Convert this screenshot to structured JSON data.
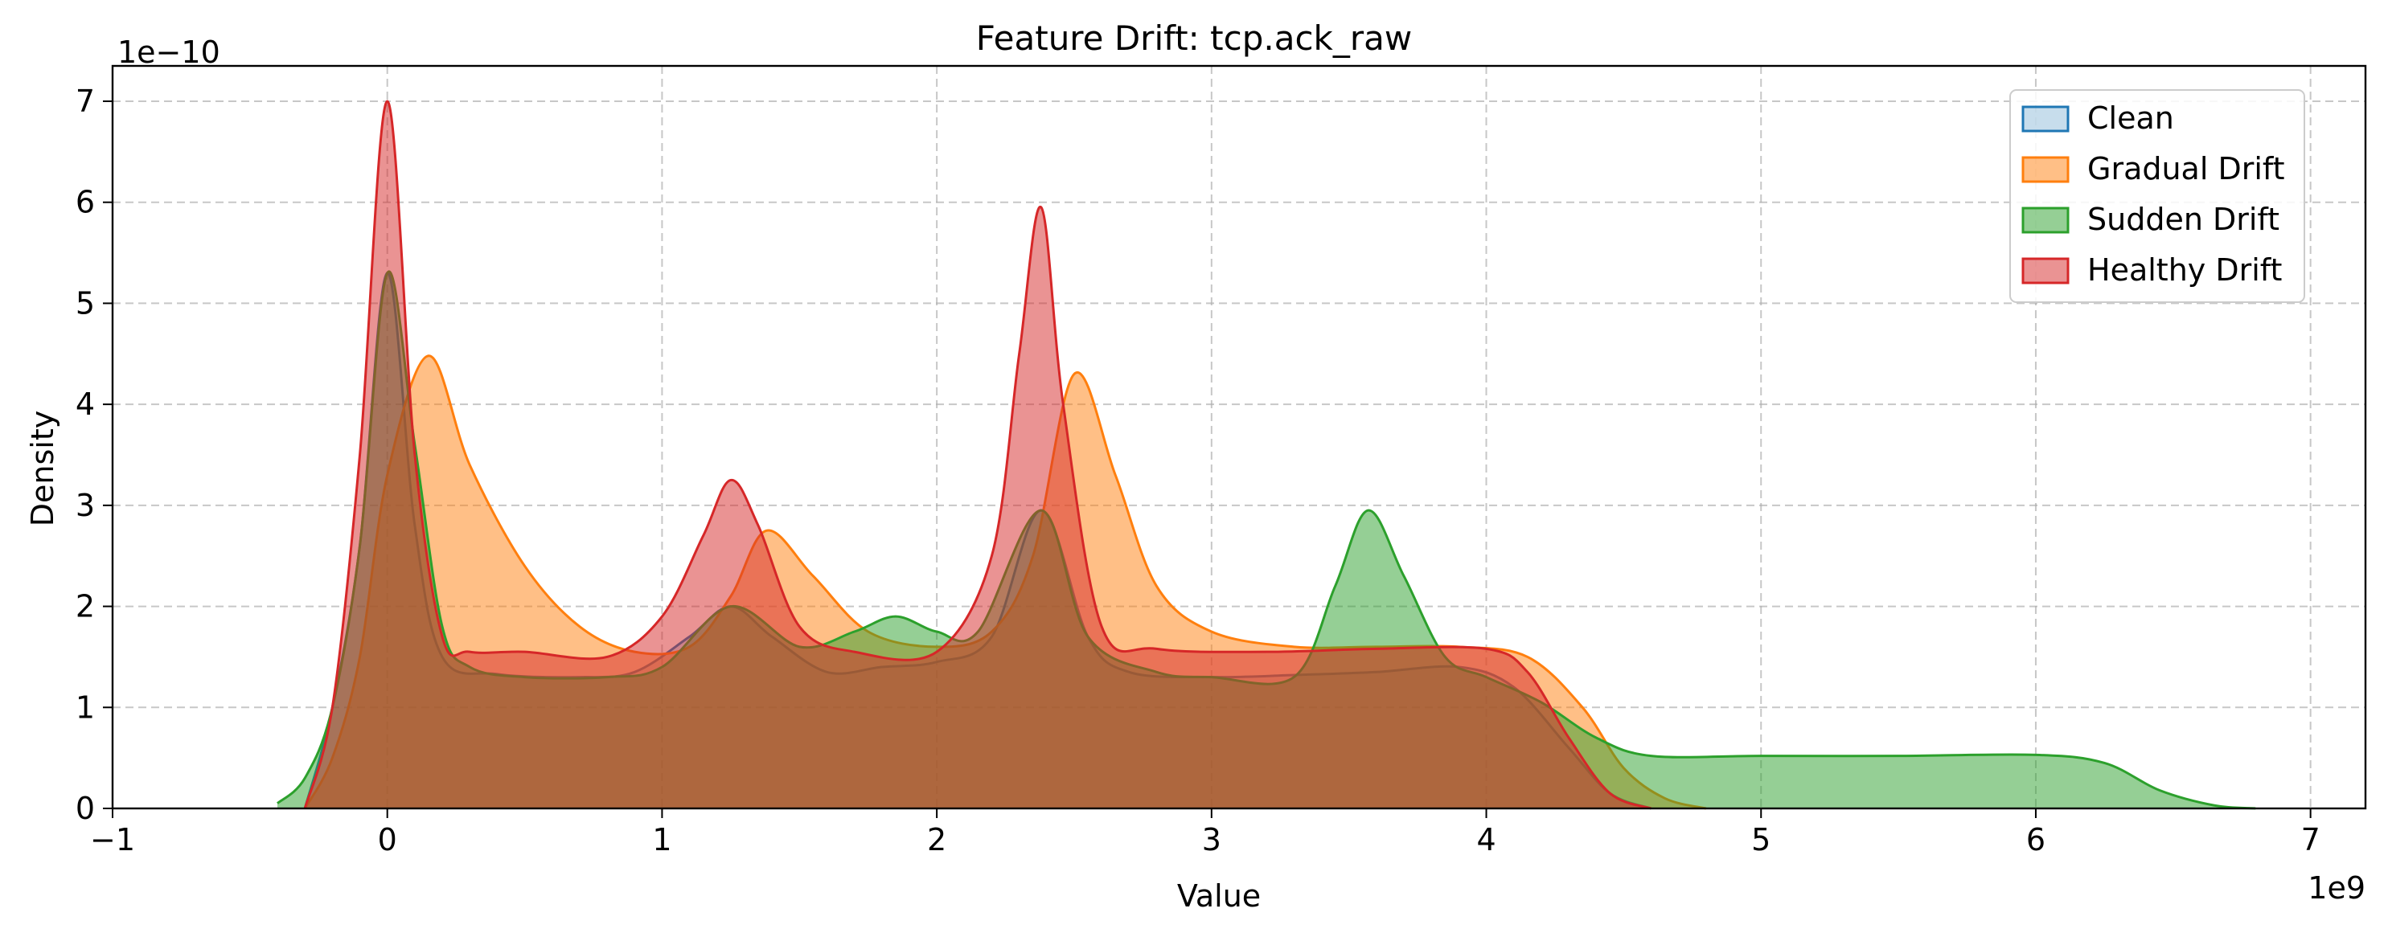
{
  "chart_data": {
    "type": "area",
    "title": "Feature Drift: tcp.ack_raw",
    "xlabel": "Value",
    "ylabel": "Density",
    "x_offset_label": "1e9",
    "y_offset_label": "1e−10",
    "xlim": [
      -1.0,
      7.2
    ],
    "ylim": [
      0,
      7.35
    ],
    "x_ticks": [
      -1,
      0,
      1,
      2,
      3,
      4,
      5,
      6,
      7
    ],
    "x_tick_labels": [
      "−1",
      "0",
      "1",
      "2",
      "3",
      "4",
      "5",
      "6",
      "7"
    ],
    "y_ticks": [
      0,
      1,
      2,
      3,
      4,
      5,
      6,
      7
    ],
    "y_tick_labels": [
      "0",
      "1",
      "2",
      "3",
      "4",
      "5",
      "6",
      "7"
    ],
    "grid": true,
    "legend_position": "top-right",
    "series": [
      {
        "name": "Clean",
        "color": "#1f77b4",
        "x": [
          -0.3,
          -0.2,
          -0.1,
          0.0,
          0.1,
          0.2,
          0.4,
          0.7,
          0.9,
          1.1,
          1.25,
          1.4,
          1.6,
          1.8,
          2.0,
          2.2,
          2.38,
          2.55,
          2.7,
          3.0,
          3.3,
          3.6,
          3.9,
          4.1,
          4.3,
          4.45,
          4.6
        ],
        "y": [
          0.0,
          1.0,
          2.6,
          5.3,
          2.8,
          1.5,
          1.33,
          1.3,
          1.35,
          1.7,
          2.0,
          1.7,
          1.35,
          1.4,
          1.45,
          1.7,
          2.95,
          1.7,
          1.35,
          1.3,
          1.32,
          1.35,
          1.4,
          1.2,
          0.6,
          0.15,
          0.0
        ]
      },
      {
        "name": "Gradual Drift",
        "color": "#ff7f0e",
        "x": [
          -0.3,
          -0.2,
          -0.1,
          0.0,
          0.15,
          0.3,
          0.5,
          0.7,
          0.9,
          1.1,
          1.25,
          1.38,
          1.55,
          1.75,
          2.0,
          2.2,
          2.35,
          2.5,
          2.65,
          2.8,
          3.0,
          3.3,
          3.6,
          3.9,
          4.15,
          4.35,
          4.5,
          4.65,
          4.8
        ],
        "y": [
          0.0,
          0.5,
          1.5,
          3.3,
          4.48,
          3.4,
          2.4,
          1.8,
          1.55,
          1.6,
          2.1,
          2.75,
          2.3,
          1.75,
          1.6,
          1.75,
          2.5,
          4.3,
          3.3,
          2.2,
          1.75,
          1.6,
          1.6,
          1.6,
          1.5,
          1.0,
          0.4,
          0.1,
          0.0
        ]
      },
      {
        "name": "Sudden Drift",
        "color": "#2ca02c",
        "x": [
          -0.4,
          -0.3,
          -0.2,
          -0.1,
          0.0,
          0.1,
          0.2,
          0.3,
          0.5,
          0.8,
          1.0,
          1.25,
          1.5,
          1.7,
          1.85,
          2.0,
          2.15,
          2.38,
          2.55,
          2.8,
          3.0,
          3.3,
          3.45,
          3.57,
          3.7,
          3.85,
          4.0,
          4.2,
          4.4,
          4.6,
          5.0,
          5.5,
          6.0,
          6.25,
          6.45,
          6.65,
          6.8
        ],
        "y": [
          0.05,
          0.3,
          1.0,
          2.6,
          5.3,
          3.6,
          1.8,
          1.4,
          1.3,
          1.3,
          1.4,
          2.0,
          1.6,
          1.75,
          1.9,
          1.75,
          1.75,
          2.95,
          1.7,
          1.35,
          1.3,
          1.3,
          2.2,
          2.95,
          2.3,
          1.5,
          1.3,
          1.05,
          0.7,
          0.52,
          0.52,
          0.52,
          0.53,
          0.45,
          0.18,
          0.03,
          0.0
        ]
      },
      {
        "name": "Healthy Drift",
        "color": "#d62728",
        "x": [
          -0.3,
          -0.2,
          -0.1,
          0.0,
          0.1,
          0.2,
          0.3,
          0.5,
          0.8,
          1.0,
          1.15,
          1.25,
          1.35,
          1.5,
          1.7,
          2.0,
          2.2,
          2.3,
          2.38,
          2.46,
          2.6,
          2.8,
          3.2,
          3.6,
          4.0,
          4.15,
          4.3,
          4.45,
          4.6
        ],
        "y": [
          0.0,
          1.0,
          3.5,
          7.0,
          3.5,
          1.7,
          1.55,
          1.55,
          1.5,
          1.9,
          2.7,
          3.25,
          2.8,
          1.8,
          1.55,
          1.55,
          2.5,
          4.5,
          5.95,
          4.0,
          1.8,
          1.58,
          1.55,
          1.58,
          1.58,
          1.35,
          0.7,
          0.15,
          0.0
        ]
      }
    ]
  }
}
